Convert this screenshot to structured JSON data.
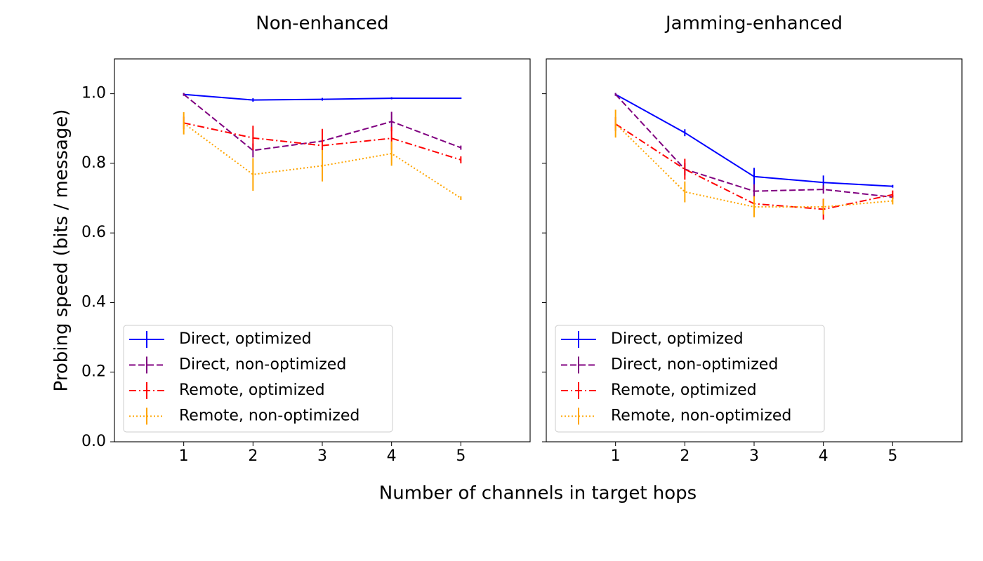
{
  "figure": {
    "ylabel": "Probing speed (bits / message)",
    "xlabel": "Number of channels in target hops"
  },
  "chart_data": [
    {
      "type": "line",
      "title": "Non-enhanced",
      "xlabel": "Number of channels in target hops",
      "ylabel": "Probing speed (bits / message)",
      "x": [
        1,
        2,
        3,
        4,
        5
      ],
      "xlim": [
        0,
        6
      ],
      "ylim": [
        0,
        1.1
      ],
      "xticks": [
        "1",
        "2",
        "3",
        "4",
        "5"
      ],
      "yticks": [
        "0.0",
        "0.2",
        "0.4",
        "0.6",
        "0.8",
        "1.0"
      ],
      "legend_position": "lower-left",
      "grid": false,
      "series": [
        {
          "name": "Direct, optimized",
          "color": "#0000ff",
          "dash": "solid",
          "values": [
            0.998,
            0.982,
            0.984,
            0.987,
            0.987
          ],
          "errors": [
            0.004,
            0.005,
            0.004,
            0.003,
            0.002
          ]
        },
        {
          "name": "Direct, non-optimized",
          "color": "#800080",
          "dash": "dashed",
          "values": [
            0.998,
            0.837,
            0.864,
            0.92,
            0.845
          ],
          "errors": [
            0.004,
            0.02,
            0.022,
            0.028,
            0.006
          ]
        },
        {
          "name": "Remote, optimized",
          "color": "#ff0000",
          "dash": "dashdot",
          "values": [
            0.916,
            0.873,
            0.851,
            0.872,
            0.81
          ],
          "errors": [
            0.018,
            0.035,
            0.048,
            0.033,
            0.01
          ]
        },
        {
          "name": "Remote, non-optimized",
          "color": "#ffa500",
          "dash": "dotted",
          "values": [
            0.915,
            0.768,
            0.793,
            0.828,
            0.7
          ],
          "errors": [
            0.032,
            0.047,
            0.045,
            0.035,
            0.005
          ]
        }
      ]
    },
    {
      "type": "line",
      "title": "Jamming-enhanced",
      "xlabel": "Number of channels in target hops",
      "ylabel": "Probing speed (bits / message)",
      "x": [
        1,
        2,
        3,
        4,
        5
      ],
      "xlim": [
        0,
        6
      ],
      "ylim": [
        0,
        1.1
      ],
      "xticks": [
        "1",
        "2",
        "3",
        "4",
        "5"
      ],
      "yticks": [
        "0.0",
        "0.2",
        "0.4",
        "0.6",
        "0.8",
        "1.0"
      ],
      "legend_position": "lower-left",
      "grid": false,
      "series": [
        {
          "name": "Direct, optimized",
          "color": "#0000ff",
          "dash": "solid",
          "values": [
            0.998,
            0.888,
            0.762,
            0.745,
            0.734
          ],
          "errors": [
            0.004,
            0.01,
            0.025,
            0.02,
            0.004
          ]
        },
        {
          "name": "Direct, non-optimized",
          "color": "#800080",
          "dash": "dashed",
          "values": [
            0.998,
            0.783,
            0.72,
            0.725,
            0.703
          ],
          "errors": [
            0.004,
            0.018,
            0.02,
            0.012,
            0.006
          ]
        },
        {
          "name": "Remote, optimized",
          "color": "#ff0000",
          "dash": "dashdot",
          "values": [
            0.913,
            0.783,
            0.684,
            0.668,
            0.71
          ],
          "errors": [
            0.02,
            0.03,
            0.022,
            0.03,
            0.012
          ]
        },
        {
          "name": "Remote, non-optimized",
          "color": "#ffa500",
          "dash": "dotted",
          "values": [
            0.914,
            0.718,
            0.675,
            0.675,
            0.692
          ],
          "errors": [
            0.04,
            0.03,
            0.03,
            0.022,
            0.01
          ]
        }
      ]
    }
  ]
}
